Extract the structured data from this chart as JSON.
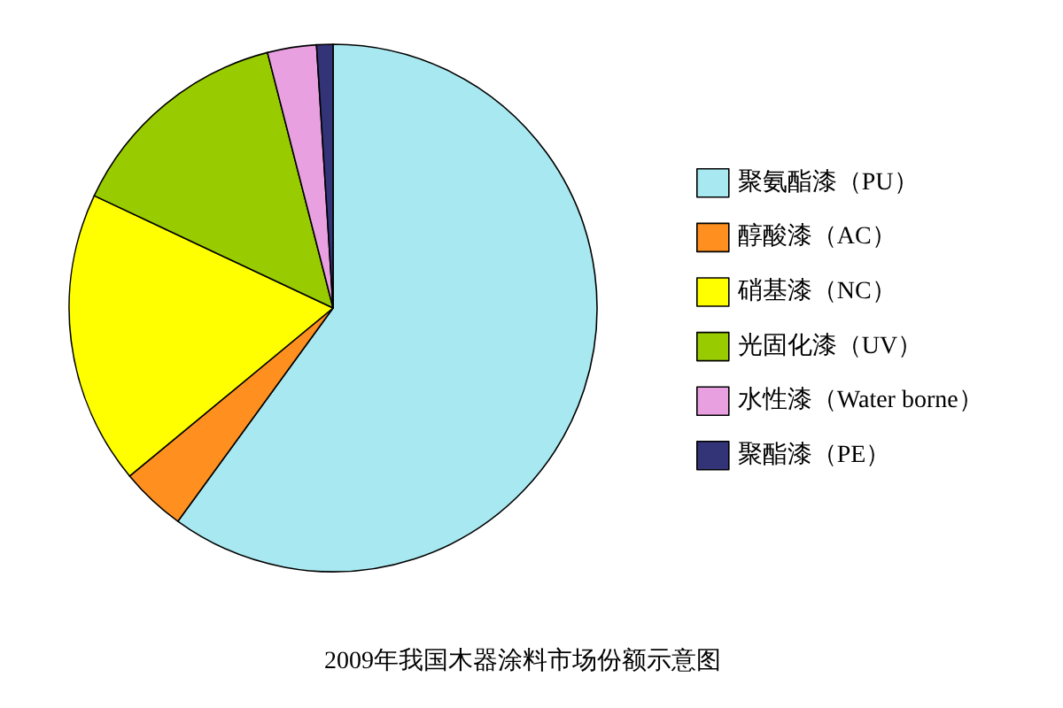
{
  "chart_data": {
    "type": "pie",
    "title": "2009年我国木器涂料市场份额示意图",
    "categories": [
      "聚氨酯漆（PU）",
      "醇酸漆（AC）",
      "硝基漆（NC）",
      "光固化漆（UV）",
      "水性漆（Water borne）",
      "聚酯漆（PE）"
    ],
    "values": [
      60,
      4,
      18,
      14,
      3,
      1
    ],
    "colors": [
      "#a8e8f0",
      "#ff9020",
      "#ffff00",
      "#99cc00",
      "#e8a0e0",
      "#333377"
    ],
    "legend": "right"
  }
}
